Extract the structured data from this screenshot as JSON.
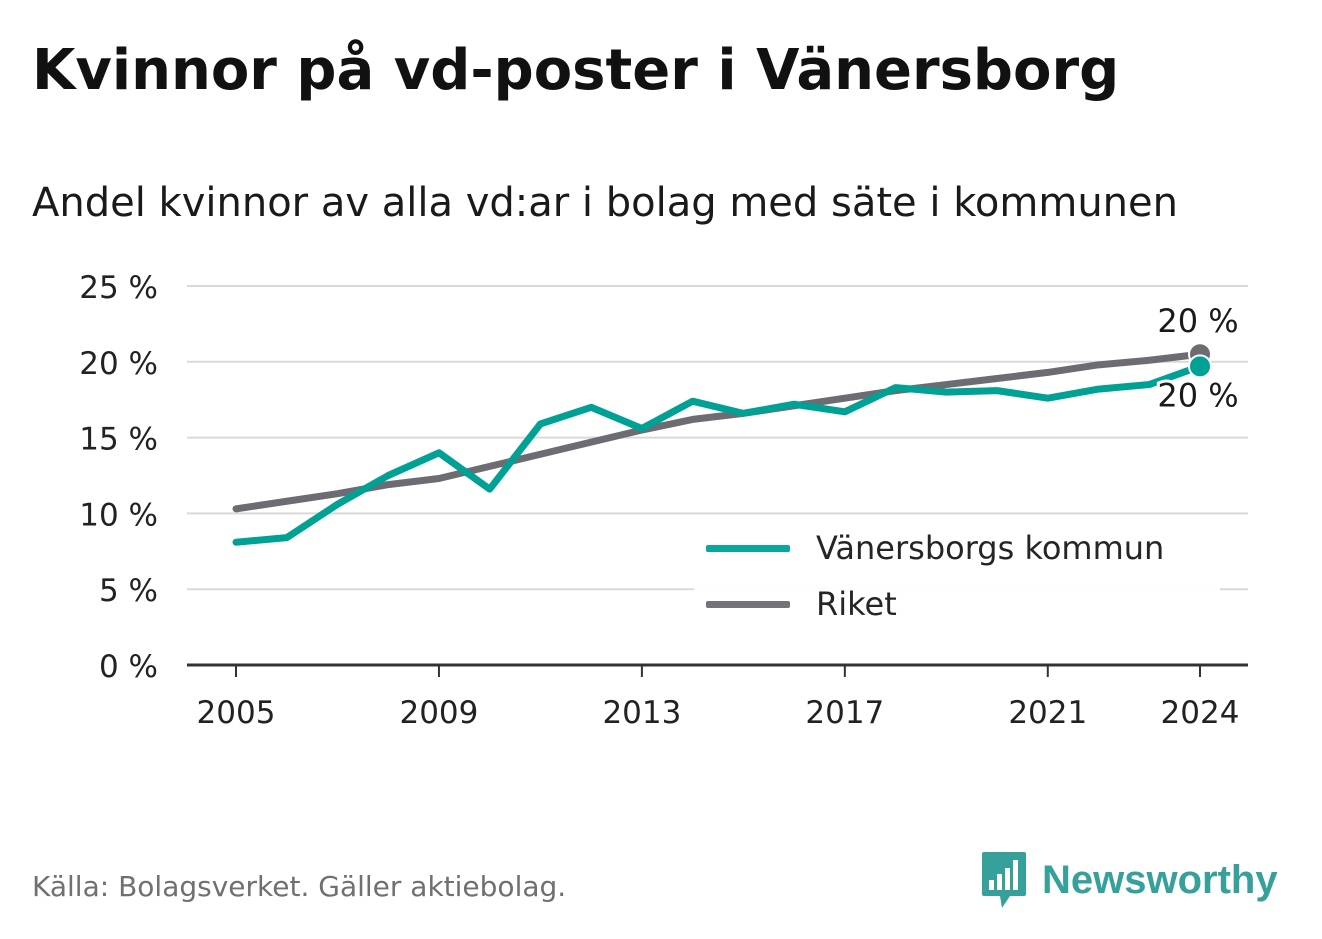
{
  "title": "Kvinnor på vd-poster i Vänersborg",
  "subtitle": "Andel kvinnor av alla vd:ar i bolag med säte i kommunen",
  "source": "Källa: Bolagsverket. Gäller aktiebolag.",
  "brand": "Newsworthy",
  "colors": {
    "kommun": "#00a195",
    "riket": "#6d6c72",
    "brand": "#36a19a",
    "grid": "#d9d9d9",
    "axis": "#333333"
  },
  "chart_data": {
    "type": "line",
    "x": [
      2005,
      2006,
      2007,
      2008,
      2009,
      2010,
      2011,
      2012,
      2013,
      2014,
      2015,
      2016,
      2017,
      2018,
      2019,
      2020,
      2021,
      2022,
      2023,
      2024
    ],
    "series": [
      {
        "name": "Vänersborgs kommun",
        "values": [
          8.1,
          8.4,
          10.6,
          12.5,
          14.0,
          11.6,
          15.9,
          17.0,
          15.6,
          17.4,
          16.6,
          17.2,
          16.7,
          18.3,
          18.0,
          18.1,
          17.6,
          18.2,
          18.5,
          19.7
        ],
        "end_label": "20 %"
      },
      {
        "name": "Riket",
        "values": [
          10.3,
          10.8,
          11.3,
          11.9,
          12.3,
          13.1,
          13.9,
          14.7,
          15.5,
          16.2,
          16.6,
          17.1,
          17.6,
          18.1,
          18.5,
          18.9,
          19.3,
          19.8,
          20.1,
          20.5
        ],
        "end_label": "20 %"
      }
    ],
    "xticks": [
      2005,
      2009,
      2013,
      2017,
      2021,
      2024
    ],
    "xtick_labels": [
      "2005",
      "2009",
      "2013",
      "2017",
      "2021",
      "2024"
    ],
    "yticks": [
      0,
      5,
      10,
      15,
      20,
      25
    ],
    "ytick_labels": [
      "0 %",
      "5 %",
      "10 %",
      "15 %",
      "20 %",
      "25 %"
    ],
    "xlim": [
      2004,
      2025
    ],
    "ylim": [
      0,
      25
    ],
    "grid": true,
    "legend_position": "bottom-right"
  }
}
